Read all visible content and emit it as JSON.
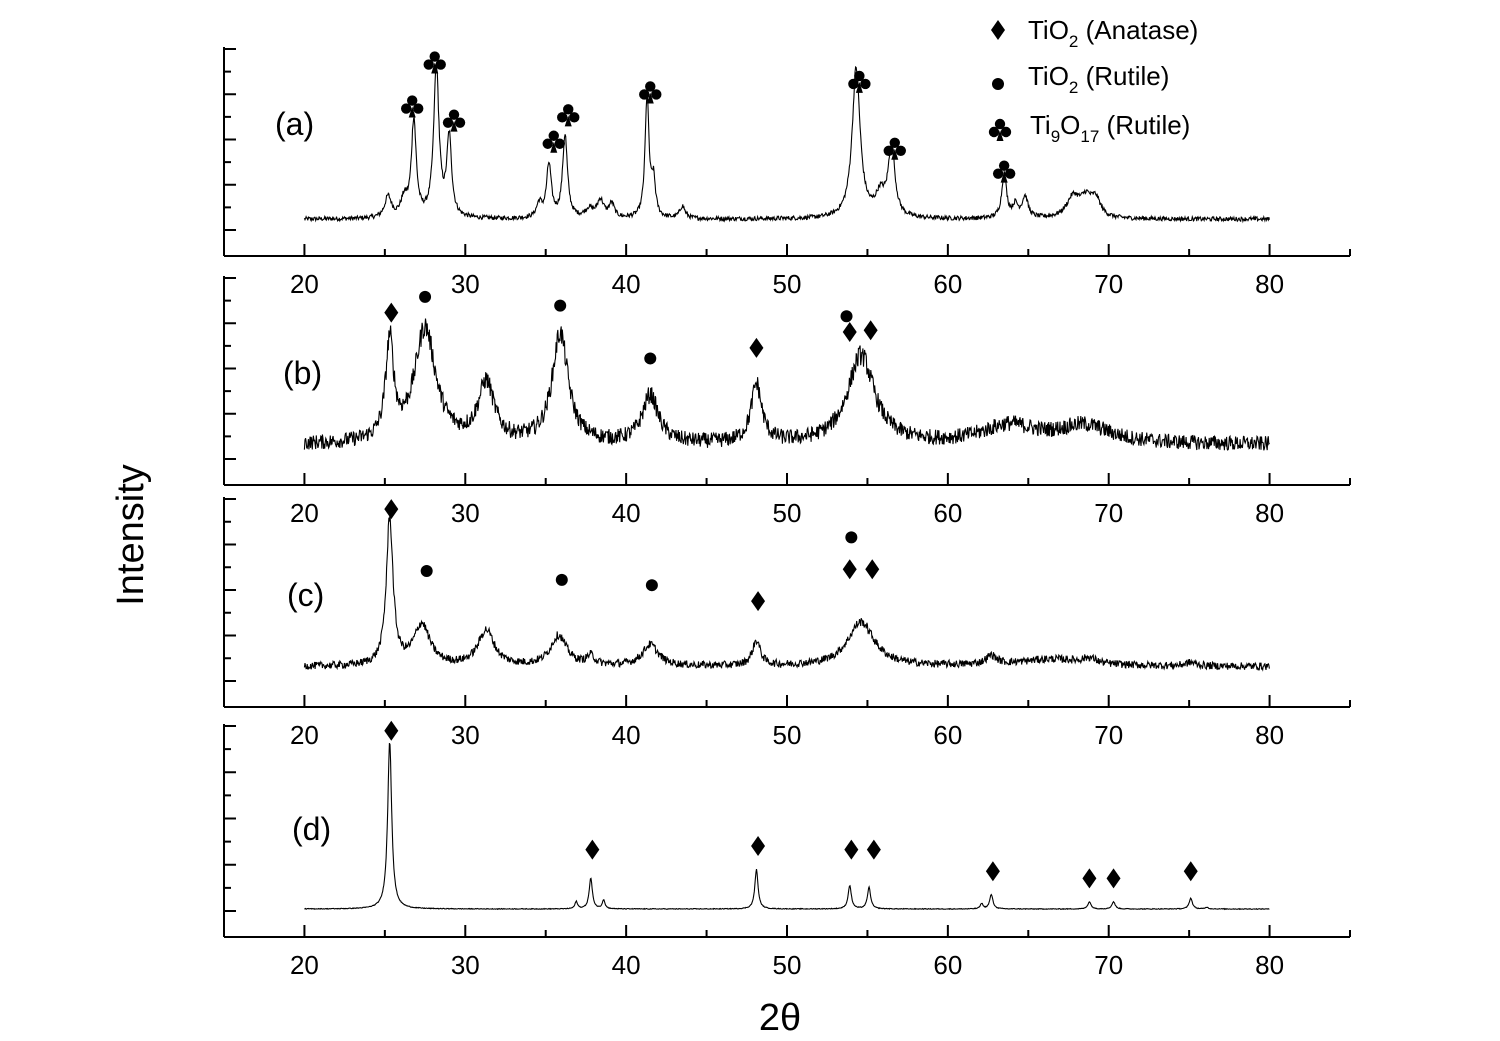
{
  "chart_data": {
    "type": "line",
    "title": "",
    "xlabel": "2θ",
    "ylabel": "Intensity",
    "xlim": [
      15,
      85
    ],
    "xticks": [
      20,
      30,
      40,
      50,
      60,
      70,
      80
    ],
    "grid": false,
    "legend_position": "top-right",
    "legend": [
      {
        "marker": "diamond",
        "label": "TiO",
        "sub": "2",
        "label_rest": " (Anatase)"
      },
      {
        "marker": "circle",
        "label": "TiO",
        "sub": "2",
        "label_rest": " (Rutile)"
      },
      {
        "marker": "club",
        "label_parts": [
          {
            "t": "Ti"
          },
          {
            "t": "9",
            "sub": true
          },
          {
            "t": "O"
          },
          {
            "t": "17",
            "sub": true
          },
          {
            "t": " (Rutile)"
          }
        ]
      }
    ],
    "panels": [
      {
        "label": "(a)",
        "baseline": 0.05,
        "noise": 0.012,
        "peaks": [
          {
            "x": 25.2,
            "h": 0.12,
            "w": 0.25
          },
          {
            "x": 26.2,
            "h": 0.1,
            "w": 0.25
          },
          {
            "x": 26.8,
            "h": 0.55,
            "w": 0.18
          },
          {
            "x": 28.2,
            "h": 0.85,
            "w": 0.2
          },
          {
            "x": 29.0,
            "h": 0.45,
            "w": 0.18
          },
          {
            "x": 34.6,
            "h": 0.08,
            "w": 0.2
          },
          {
            "x": 35.2,
            "h": 0.3,
            "w": 0.18
          },
          {
            "x": 36.2,
            "h": 0.47,
            "w": 0.18
          },
          {
            "x": 37.7,
            "h": 0.05,
            "w": 0.3
          },
          {
            "x": 38.4,
            "h": 0.1,
            "w": 0.25
          },
          {
            "x": 39.1,
            "h": 0.08,
            "w": 0.2
          },
          {
            "x": 41.3,
            "h": 0.68,
            "w": 0.15
          },
          {
            "x": 41.7,
            "h": 0.2,
            "w": 0.15
          },
          {
            "x": 43.5,
            "h": 0.07,
            "w": 0.2
          },
          {
            "x": 54.3,
            "h": 0.85,
            "w": 0.3
          },
          {
            "x": 55.8,
            "h": 0.12,
            "w": 0.35
          },
          {
            "x": 56.5,
            "h": 0.4,
            "w": 0.25
          },
          {
            "x": 63.5,
            "h": 0.25,
            "w": 0.18
          },
          {
            "x": 64.2,
            "h": 0.07,
            "w": 0.2
          },
          {
            "x": 64.8,
            "h": 0.12,
            "w": 0.22
          },
          {
            "x": 67.8,
            "h": 0.12,
            "w": 0.5
          },
          {
            "x": 68.6,
            "h": 0.1,
            "w": 0.4
          },
          {
            "x": 69.2,
            "h": 0.1,
            "w": 0.35
          }
        ],
        "annotations": [
          {
            "marker": "club",
            "x": 26.7,
            "y": 0.69
          },
          {
            "marker": "club",
            "x": 28.1,
            "y": 0.94
          },
          {
            "marker": "club",
            "x": 29.3,
            "y": 0.61
          },
          {
            "marker": "club",
            "x": 35.5,
            "y": 0.49
          },
          {
            "marker": "club",
            "x": 36.4,
            "y": 0.64
          },
          {
            "marker": "club",
            "x": 41.5,
            "y": 0.77
          },
          {
            "marker": "club",
            "x": 54.5,
            "y": 0.83
          },
          {
            "marker": "club",
            "x": 56.7,
            "y": 0.45
          },
          {
            "marker": "club",
            "x": 63.5,
            "y": 0.32
          }
        ]
      },
      {
        "label": "(b)",
        "baseline": 0.07,
        "noise": 0.04,
        "peaks": [
          {
            "x": 25.3,
            "h": 0.55,
            "w": 0.3
          },
          {
            "x": 27.5,
            "h": 0.65,
            "w": 0.8
          },
          {
            "x": 31.3,
            "h": 0.33,
            "w": 0.6
          },
          {
            "x": 35.9,
            "h": 0.62,
            "w": 0.6
          },
          {
            "x": 41.5,
            "h": 0.27,
            "w": 0.6
          },
          {
            "x": 48.1,
            "h": 0.33,
            "w": 0.4
          },
          {
            "x": 54.6,
            "h": 0.5,
            "w": 1.0
          },
          {
            "x": 63.8,
            "h": 0.1,
            "w": 2.0
          },
          {
            "x": 68.5,
            "h": 0.1,
            "w": 2.0
          }
        ],
        "annotations": [
          {
            "marker": "diamond",
            "x": 25.4,
            "y": 0.82
          },
          {
            "marker": "circle",
            "x": 27.5,
            "y": 0.91
          },
          {
            "marker": "circle",
            "x": 35.9,
            "y": 0.86
          },
          {
            "marker": "circle",
            "x": 41.5,
            "y": 0.56
          },
          {
            "marker": "diamond",
            "x": 48.1,
            "y": 0.62
          },
          {
            "marker": "circle",
            "x": 53.7,
            "y": 0.8
          },
          {
            "marker": "diamond",
            "x": 53.9,
            "y": 0.71
          },
          {
            "marker": "diamond",
            "x": 55.2,
            "y": 0.72
          }
        ]
      },
      {
        "label": "(c)",
        "baseline": 0.07,
        "noise": 0.02,
        "peaks": [
          {
            "x": 25.3,
            "h": 0.83,
            "w": 0.25
          },
          {
            "x": 27.3,
            "h": 0.23,
            "w": 0.6
          },
          {
            "x": 31.3,
            "h": 0.2,
            "w": 0.6
          },
          {
            "x": 35.8,
            "h": 0.17,
            "w": 0.6
          },
          {
            "x": 37.8,
            "h": 0.05,
            "w": 0.3
          },
          {
            "x": 41.5,
            "h": 0.12,
            "w": 0.6
          },
          {
            "x": 48.1,
            "h": 0.14,
            "w": 0.3
          },
          {
            "x": 54.6,
            "h": 0.25,
            "w": 1.0
          },
          {
            "x": 62.7,
            "h": 0.05,
            "w": 0.4
          },
          {
            "x": 66.5,
            "h": 0.04,
            "w": 2.5
          },
          {
            "x": 68.8,
            "h": 0.03,
            "w": 0.5
          },
          {
            "x": 75.1,
            "h": 0.02,
            "w": 0.4
          }
        ],
        "annotations": [
          {
            "marker": "diamond",
            "x": 25.4,
            "y": 0.96
          },
          {
            "marker": "circle",
            "x": 27.6,
            "y": 0.61
          },
          {
            "marker": "circle",
            "x": 36.0,
            "y": 0.56
          },
          {
            "marker": "circle",
            "x": 41.6,
            "y": 0.53
          },
          {
            "marker": "diamond",
            "x": 48.2,
            "y": 0.44
          },
          {
            "marker": "circle",
            "x": 54.0,
            "y": 0.8
          },
          {
            "marker": "diamond",
            "x": 53.9,
            "y": 0.62
          },
          {
            "marker": "diamond",
            "x": 55.3,
            "y": 0.62
          }
        ]
      },
      {
        "label": "(d)",
        "baseline": 0.0,
        "noise": 0.002,
        "peaks": [
          {
            "x": 25.3,
            "h": 0.93,
            "w": 0.15
          },
          {
            "x": 36.9,
            "h": 0.04,
            "w": 0.1
          },
          {
            "x": 37.8,
            "h": 0.17,
            "w": 0.12
          },
          {
            "x": 38.6,
            "h": 0.05,
            "w": 0.1
          },
          {
            "x": 48.1,
            "h": 0.22,
            "w": 0.12
          },
          {
            "x": 53.9,
            "h": 0.13,
            "w": 0.12
          },
          {
            "x": 55.1,
            "h": 0.12,
            "w": 0.12
          },
          {
            "x": 62.1,
            "h": 0.03,
            "w": 0.1
          },
          {
            "x": 62.7,
            "h": 0.08,
            "w": 0.12
          },
          {
            "x": 68.8,
            "h": 0.04,
            "w": 0.12
          },
          {
            "x": 70.3,
            "h": 0.04,
            "w": 0.12
          },
          {
            "x": 75.1,
            "h": 0.06,
            "w": 0.12
          },
          {
            "x": 76.1,
            "h": 0.01,
            "w": 0.1
          }
        ],
        "annotations": [
          {
            "marker": "diamond",
            "x": 25.4,
            "y": 0.99
          },
          {
            "marker": "diamond",
            "x": 37.9,
            "y": 0.33
          },
          {
            "marker": "diamond",
            "x": 48.2,
            "y": 0.35
          },
          {
            "marker": "diamond",
            "x": 54.0,
            "y": 0.33
          },
          {
            "marker": "diamond",
            "x": 55.4,
            "y": 0.33
          },
          {
            "marker": "diamond",
            "x": 62.8,
            "y": 0.21
          },
          {
            "marker": "diamond",
            "x": 68.8,
            "y": 0.17
          },
          {
            "marker": "diamond",
            "x": 70.3,
            "y": 0.17
          },
          {
            "marker": "diamond",
            "x": 75.1,
            "y": 0.21
          }
        ]
      }
    ]
  }
}
